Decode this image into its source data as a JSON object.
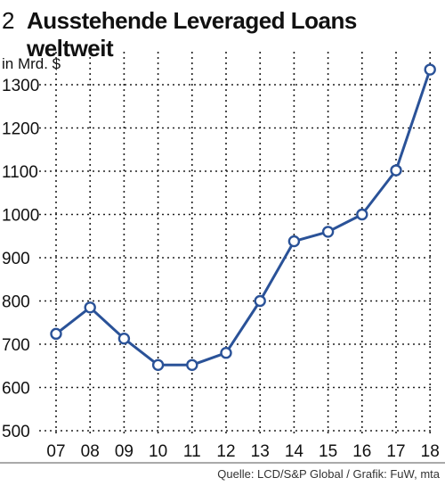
{
  "header": {
    "figure_number": "2",
    "title": "Ausstehende Leveraged Loans weltweit",
    "unit": "in Mrd. $"
  },
  "footer": {
    "source": "Quelle: LCD/S&P Global / Grafik: FuW, mta"
  },
  "colors": {
    "line": "#2a5298",
    "grid": "#222222",
    "marker_fill": "#ffffff"
  },
  "chart_data": {
    "type": "line",
    "title": "Ausstehende Leveraged Loans weltweit",
    "ylabel": "in Mrd. $",
    "xlabel": "",
    "categories": [
      "07",
      "08",
      "09",
      "10",
      "11",
      "12",
      "13",
      "14",
      "15",
      "16",
      "17",
      "18"
    ],
    "values": [
      724,
      785,
      713,
      652,
      652,
      680,
      800,
      938,
      960,
      1000,
      1102,
      1335
    ],
    "ylim": [
      500,
      1350
    ],
    "yticks": [
      500,
      600,
      700,
      800,
      900,
      1000,
      1100,
      1200,
      1300
    ],
    "grid": true,
    "grid_style": "dotted"
  }
}
